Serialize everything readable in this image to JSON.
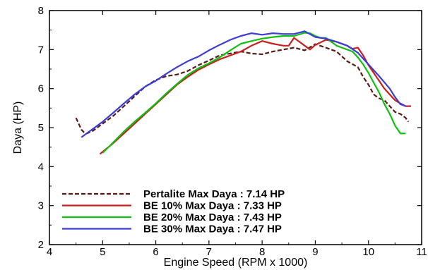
{
  "chart_data": {
    "type": "line",
    "title": "",
    "xlabel": "Engine Speed (RPM x 1000)",
    "ylabel": "Daya (HP)",
    "xlim": [
      4,
      11
    ],
    "ylim": [
      2,
      8
    ],
    "xticks": [
      4,
      5,
      6,
      7,
      8,
      9,
      10,
      11
    ],
    "yticks": [
      2,
      3,
      4,
      5,
      6,
      7,
      8
    ],
    "grid": false,
    "legend_position": "bottom-left",
    "series": [
      {
        "name": "Pertalite Max Daya : 7.14 HP",
        "color": "#5a1a14",
        "dash": "dashed",
        "x": [
          4.5,
          4.55,
          4.6,
          4.65,
          4.7,
          4.8,
          4.9,
          5.0,
          5.2,
          5.4,
          5.6,
          5.8,
          6.0,
          6.2,
          6.4,
          6.6,
          6.8,
          7.0,
          7.2,
          7.4,
          7.6,
          7.8,
          8.0,
          8.2,
          8.4,
          8.6,
          8.8,
          9.0,
          9.2,
          9.4,
          9.6,
          9.8,
          9.9,
          10.0,
          10.1,
          10.2,
          10.3,
          10.4,
          10.5,
          10.6,
          10.7,
          10.75
        ],
        "y": [
          5.25,
          5.1,
          4.95,
          4.88,
          4.85,
          4.9,
          5.0,
          5.1,
          5.3,
          5.55,
          5.8,
          6.05,
          6.22,
          6.32,
          6.36,
          6.45,
          6.6,
          6.72,
          6.85,
          6.9,
          6.95,
          6.9,
          6.88,
          6.95,
          7.0,
          7.05,
          6.98,
          7.14,
          7.05,
          6.95,
          6.7,
          6.55,
          6.3,
          6.1,
          5.85,
          5.75,
          5.7,
          5.55,
          5.4,
          5.35,
          5.25,
          5.15
        ]
      },
      {
        "name": "BE 10% Max Daya : 7.33 HP",
        "color": "#c8201e",
        "dash": "solid",
        "x": [
          4.95,
          5.0,
          5.2,
          5.4,
          5.6,
          5.8,
          6.0,
          6.2,
          6.4,
          6.6,
          6.8,
          7.0,
          7.2,
          7.4,
          7.6,
          7.8,
          8.0,
          8.2,
          8.4,
          8.5,
          8.6,
          8.7,
          8.8,
          8.9,
          9.0,
          9.2,
          9.4,
          9.6,
          9.7,
          9.8,
          9.9,
          10.0,
          10.1,
          10.2,
          10.3,
          10.4,
          10.5,
          10.6,
          10.7,
          10.8
        ],
        "y": [
          4.32,
          4.38,
          4.6,
          4.85,
          5.1,
          5.35,
          5.6,
          5.85,
          6.1,
          6.3,
          6.48,
          6.62,
          6.75,
          6.85,
          6.95,
          7.1,
          7.22,
          7.15,
          7.1,
          7.1,
          7.3,
          7.2,
          7.1,
          7.0,
          7.12,
          7.25,
          7.2,
          7.1,
          7.02,
          7.05,
          6.85,
          6.6,
          6.4,
          6.2,
          6.0,
          5.85,
          5.7,
          5.62,
          5.55,
          5.55
        ]
      },
      {
        "name": "BE 20% Max Daya : 7.43 HP",
        "color": "#10c010",
        "dash": "solid",
        "x": [
          5.0,
          5.2,
          5.4,
          5.6,
          5.8,
          6.0,
          6.2,
          6.4,
          6.6,
          6.8,
          7.0,
          7.2,
          7.4,
          7.6,
          7.8,
          8.0,
          8.2,
          8.4,
          8.6,
          8.8,
          8.9,
          9.0,
          9.1,
          9.2,
          9.3,
          9.4,
          9.5,
          9.6,
          9.7,
          9.8,
          9.9,
          10.0,
          10.1,
          10.2,
          10.3,
          10.4,
          10.5,
          10.6,
          10.7
        ],
        "y": [
          4.35,
          4.62,
          4.9,
          5.15,
          5.38,
          5.62,
          5.88,
          6.12,
          6.35,
          6.52,
          6.65,
          6.8,
          6.98,
          7.15,
          7.22,
          7.28,
          7.32,
          7.35,
          7.35,
          7.43,
          7.42,
          7.35,
          7.3,
          7.3,
          7.2,
          7.1,
          7.05,
          7.0,
          6.95,
          6.8,
          6.62,
          6.4,
          6.15,
          5.9,
          5.6,
          5.35,
          5.05,
          4.85,
          4.85
        ]
      },
      {
        "name": "BE 30% Max Daya : 7.47 HP",
        "color": "#3c3cd6",
        "dash": "solid",
        "x": [
          4.6,
          4.8,
          5.0,
          5.2,
          5.4,
          5.6,
          5.8,
          6.0,
          6.2,
          6.4,
          6.6,
          6.8,
          7.0,
          7.2,
          7.4,
          7.6,
          7.8,
          8.0,
          8.2,
          8.4,
          8.6,
          8.8,
          9.0,
          9.2,
          9.4,
          9.6,
          9.8,
          10.0,
          10.2,
          10.4,
          10.5,
          10.6,
          10.7
        ],
        "y": [
          4.75,
          4.95,
          5.15,
          5.38,
          5.62,
          5.85,
          6.05,
          6.2,
          6.38,
          6.55,
          6.7,
          6.82,
          6.98,
          7.12,
          7.25,
          7.35,
          7.42,
          7.38,
          7.42,
          7.4,
          7.4,
          7.47,
          7.32,
          7.28,
          7.2,
          7.1,
          6.92,
          6.62,
          6.32,
          6.0,
          5.78,
          5.6,
          5.55
        ]
      }
    ]
  }
}
